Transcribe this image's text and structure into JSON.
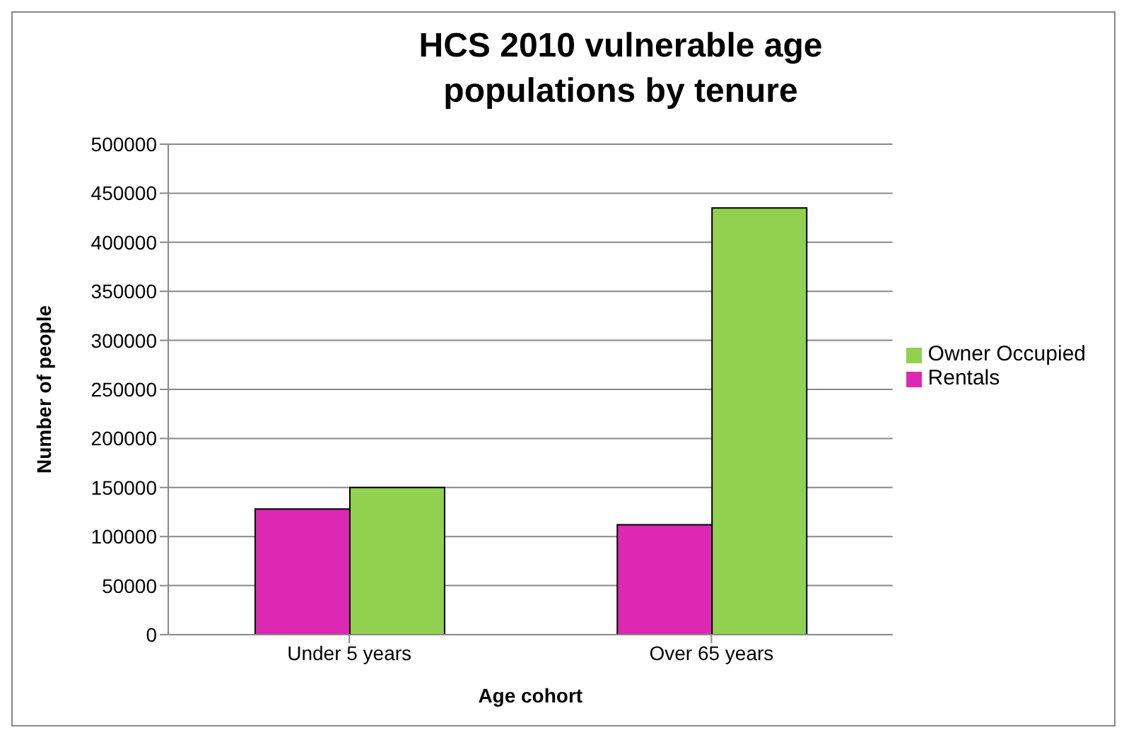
{
  "chart_data": {
    "type": "bar",
    "title": "HCS 2010 vulnerable age populations by tenure",
    "xlabel": "Age cohort",
    "ylabel": "Number of people",
    "categories": [
      "Under 5 years",
      "Over 65 years"
    ],
    "series": [
      {
        "name": "Rentals",
        "color": "#dd28b4",
        "values": [
          128000,
          112000
        ]
      },
      {
        "name": "Owner Occupied",
        "color": "#92d050",
        "values": [
          150000,
          435000
        ]
      }
    ],
    "ylim": [
      0,
      500000
    ],
    "yticks": [
      0,
      50000,
      100000,
      150000,
      200000,
      250000,
      300000,
      350000,
      400000,
      450000,
      500000
    ],
    "grid": "y",
    "legend": "right"
  }
}
